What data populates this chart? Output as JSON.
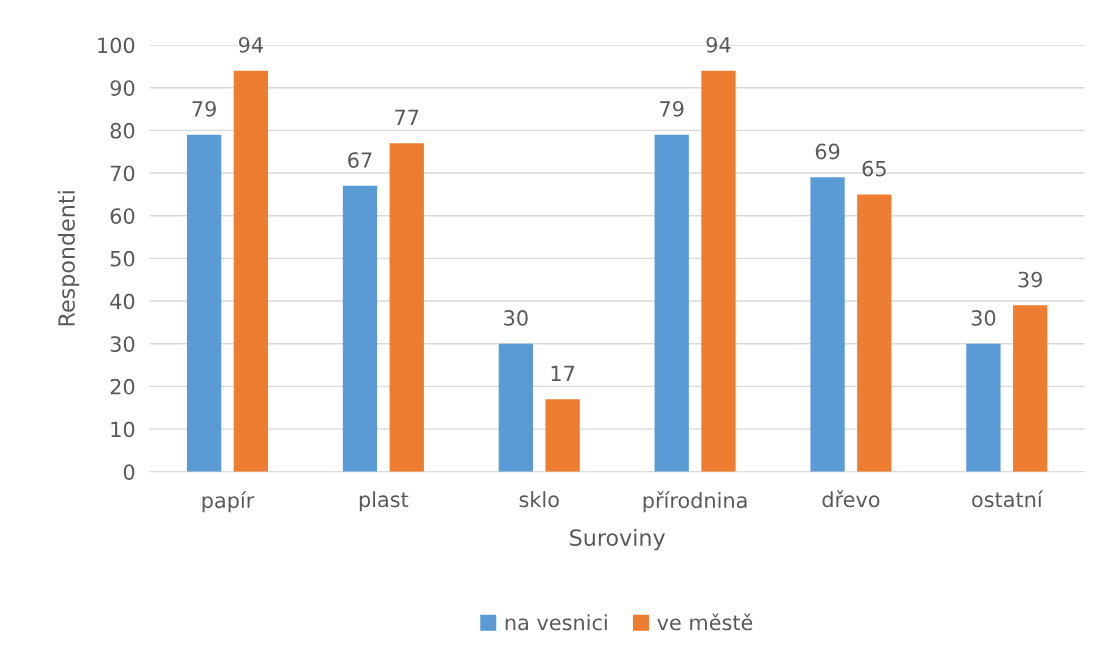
{
  "chart_data": {
    "type": "bar",
    "xlabel": "Suroviny",
    "ylabel": "Respondenti",
    "categories": [
      "papír",
      "plast",
      "sklo",
      "přírodnina",
      "dřevo",
      "ostatní"
    ],
    "series": [
      {
        "name": "na vesnici",
        "color": "#5b9bd5",
        "values": [
          79,
          67,
          30,
          79,
          69,
          30
        ]
      },
      {
        "name": "ve městě",
        "color": "#ed7d31",
        "values": [
          94,
          77,
          17,
          94,
          65,
          39
        ]
      }
    ],
    "ylim": [
      0,
      100
    ],
    "yticks": [
      0,
      10,
      20,
      30,
      40,
      50,
      60,
      70,
      80,
      90,
      100
    ],
    "grid": "y",
    "legend": "bottom",
    "data_labels": true
  }
}
